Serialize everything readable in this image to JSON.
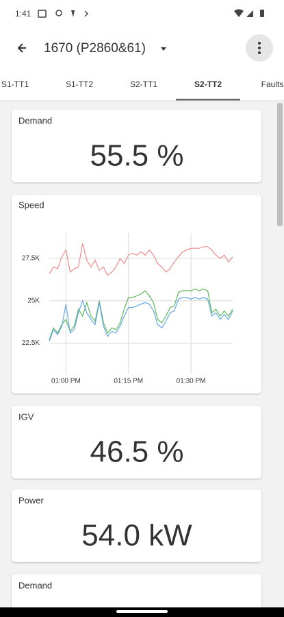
{
  "status_bar": {
    "time": "1:41"
  },
  "app_bar": {
    "title": "1670 (P2860&61)"
  },
  "tabs": [
    "S1-TT1",
    "S1-TT2",
    "S2-TT1",
    "S2-TT2",
    "Faults"
  ],
  "selected_tab": 3,
  "metric_cards": [
    {
      "label": "Demand",
      "value": "55.5 %"
    },
    {
      "label": "IGV",
      "value": "46.5 %"
    },
    {
      "label": "Power",
      "value": "54.0 kW"
    }
  ],
  "partial_card": {
    "label": "Demand"
  },
  "chart_data": {
    "type": "line",
    "title": "Speed",
    "x": [
      "12:56 PM",
      "12:57 PM",
      "12:58 PM",
      "12:59 PM",
      "01:00 PM",
      "01:01 PM",
      "01:02 PM",
      "01:03 PM",
      "01:04 PM",
      "01:05 PM",
      "01:06 PM",
      "01:07 PM",
      "01:08 PM",
      "01:09 PM",
      "01:10 PM",
      "01:11 PM",
      "01:12 PM",
      "01:13 PM",
      "01:14 PM",
      "01:15 PM",
      "01:16 PM",
      "01:17 PM",
      "01:18 PM",
      "01:19 PM",
      "01:20 PM",
      "01:21 PM",
      "01:22 PM",
      "01:23 PM",
      "01:24 PM",
      "01:25 PM",
      "01:26 PM",
      "01:27 PM",
      "01:28 PM",
      "01:29 PM",
      "01:30 PM",
      "01:31 PM",
      "01:32 PM",
      "01:33 PM",
      "01:34 PM",
      "01:35 PM",
      "01:36 PM",
      "01:37 PM",
      "01:38 PM",
      "01:39 PM",
      "01:40 PM"
    ],
    "xlim": [
      "12:56 PM",
      "01:40 PM"
    ],
    "xticks": [
      "01:00 PM",
      "01:15 PM",
      "01:30 PM"
    ],
    "ylim": [
      20700,
      29000
    ],
    "yticks": [
      {
        "value": 22500,
        "label": "22.5K"
      },
      {
        "value": 25000,
        "label": "25K"
      },
      {
        "value": 27500,
        "label": "27.5K"
      }
    ],
    "grid": true,
    "series": [
      {
        "color": "#ef8a8a",
        "values": [
          26600,
          27000,
          26900,
          27600,
          28000,
          26700,
          26900,
          27000,
          28400,
          27400,
          27000,
          27400,
          26800,
          27000,
          26500,
          26700,
          27000,
          27500,
          27200,
          27700,
          27800,
          27700,
          27900,
          27700,
          28000,
          27700,
          27200,
          27000,
          26700,
          26900,
          27300,
          27600,
          27900,
          28000,
          28100,
          28100,
          28100,
          28200,
          28200,
          28000,
          27700,
          27500,
          27700,
          27300,
          27600
        ]
      },
      {
        "color": "#5cb85c",
        "values": [
          22700,
          23400,
          23100,
          23600,
          23900,
          23200,
          23500,
          24500,
          24100,
          24900,
          24100,
          23800,
          25000,
          23700,
          23100,
          23400,
          23300,
          23700,
          24500,
          25200,
          25200,
          25300,
          25400,
          25600,
          25300,
          24900,
          23900,
          23700,
          24100,
          24600,
          24700,
          25500,
          25600,
          25600,
          25600,
          25700,
          25600,
          25700,
          25600,
          24300,
          24500,
          24100,
          24400,
          24100,
          24500
        ]
      },
      {
        "color": "#64a9e6",
        "values": [
          22600,
          23300,
          23000,
          23500,
          24800,
          23100,
          23300,
          24300,
          25000,
          24300,
          23900,
          23600,
          24900,
          23500,
          22900,
          23200,
          23100,
          23500,
          24100,
          24600,
          24600,
          24700,
          24800,
          24900,
          24800,
          24400,
          23600,
          23400,
          23800,
          24300,
          24400,
          25100,
          25200,
          25200,
          25100,
          25200,
          25100,
          25200,
          25100,
          24100,
          24300,
          23900,
          24200,
          23900,
          24400
        ]
      }
    ]
  }
}
